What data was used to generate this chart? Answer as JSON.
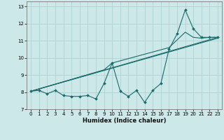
{
  "xlabel": "Humidex (Indice chaleur)",
  "bg_color": "#cce8e8",
  "grid_color": "#aacece",
  "line_color": "#1a6b6b",
  "xlim": [
    -0.5,
    23.5
  ],
  "ylim": [
    7.0,
    13.3
  ],
  "yticks": [
    7,
    8,
    9,
    10,
    11,
    12,
    13
  ],
  "xticks": [
    0,
    1,
    2,
    3,
    4,
    5,
    6,
    7,
    8,
    9,
    10,
    11,
    12,
    13,
    14,
    15,
    16,
    17,
    18,
    19,
    20,
    21,
    22,
    23
  ],
  "data_x": [
    0,
    1,
    2,
    3,
    4,
    5,
    6,
    7,
    8,
    9,
    10,
    11,
    12,
    13,
    14,
    15,
    16,
    17,
    18,
    19,
    20,
    21,
    22,
    23
  ],
  "data_y": [
    8.05,
    8.1,
    7.9,
    8.1,
    7.8,
    7.75,
    7.75,
    7.8,
    7.6,
    8.5,
    9.7,
    8.05,
    7.75,
    8.1,
    7.4,
    8.1,
    8.5,
    10.5,
    11.4,
    12.8,
    11.7,
    11.2,
    11.2,
    11.2
  ],
  "straight_line": {
    "x": [
      0,
      23
    ],
    "y": [
      8.05,
      11.2
    ]
  },
  "straight_line2": {
    "x": [
      0,
      23
    ],
    "y": [
      8.05,
      11.15
    ]
  },
  "bent_line": {
    "x": [
      0,
      9,
      10,
      17,
      19,
      20,
      21,
      22,
      23
    ],
    "y": [
      8.05,
      9.3,
      9.7,
      10.6,
      11.5,
      11.2,
      11.15,
      11.2,
      11.2
    ]
  }
}
